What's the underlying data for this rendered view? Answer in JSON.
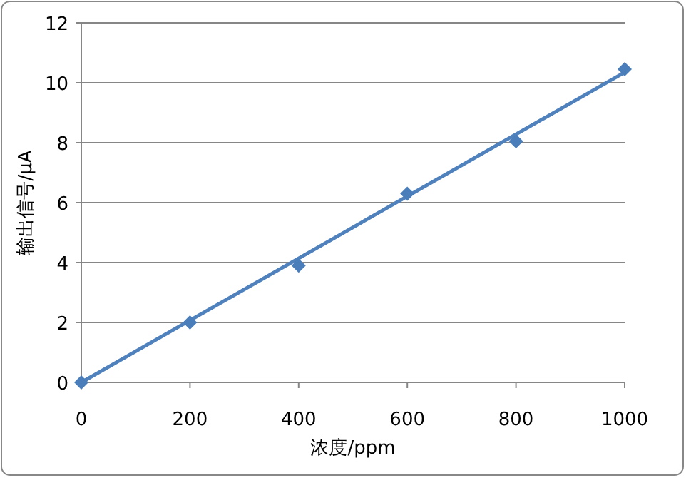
{
  "chart_data": {
    "type": "scatter",
    "xlabel": "浓度/ppm",
    "ylabel": "输出信号/μA",
    "xlim": [
      0,
      1000
    ],
    "xticks": [
      0,
      200,
      400,
      600,
      800,
      1000
    ],
    "ylim": [
      0,
      12
    ],
    "yticks": [
      0,
      2,
      4,
      6,
      8,
      10,
      12
    ],
    "grid": "y",
    "marker": "diamond",
    "series": [
      {
        "x": [
          0,
          200,
          400,
          600,
          800,
          1000
        ],
        "values": [
          0,
          2,
          3.9,
          6.3,
          8.05,
          10.45
        ],
        "color": "#4a7ebb"
      },
      {
        "type": "line",
        "marker": "none",
        "x": [
          0,
          1000
        ],
        "values": [
          0,
          10.35
        ],
        "color": "#4f81bd"
      }
    ]
  }
}
